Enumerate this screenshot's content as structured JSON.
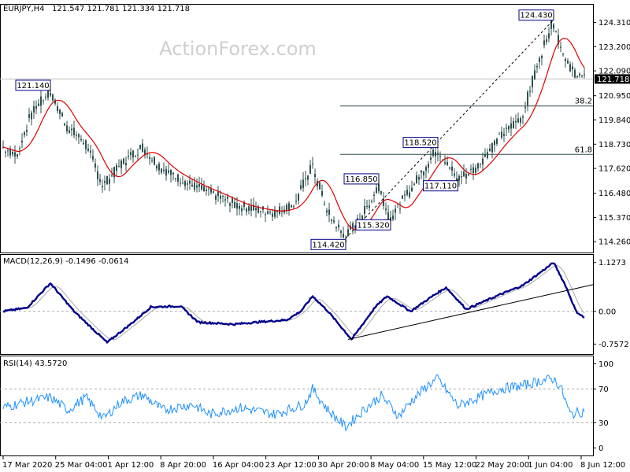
{
  "watermark": "ActionForex.com",
  "main": {
    "symbol": "EURJPY,H4",
    "ohlc": "121.547 121.781 121.334 121.718",
    "price_ticks": [
      "124.310",
      "123.200",
      "122.090",
      "120.950",
      "119.840",
      "118.730",
      "117.620",
      "116.480",
      "115.370",
      "114.260"
    ],
    "current_price": "121.718",
    "fib_levels": [
      {
        "label": "38.2",
        "price": 120.48
      },
      {
        "label": "61.8",
        "price": 118.26
      }
    ],
    "annotations": [
      "124.430",
      "121.140",
      "118.520",
      "117.110",
      "116.850",
      "115.320",
      "114.420"
    ],
    "ma_color": "#dd0000",
    "candle_color": "#2f4f4f"
  },
  "macd": {
    "label": "MACD(12,26,9) -0.1496 -0.0614",
    "ticks": [
      "1.1273",
      "0.00",
      "-0.7572"
    ],
    "macd_color": "#00008b",
    "signal_color": "#a9a9a9"
  },
  "rsi": {
    "label": "RSI(14) 43.5720",
    "ticks": [
      "100",
      "70",
      "30",
      "0"
    ],
    "color": "#1e90ff"
  },
  "x_labels": [
    "17 Mar 2020",
    "25 Mar 04:00",
    "1 Apr 12:00",
    "8 Apr 20:00",
    "16 Apr 04:00",
    "23 Apr 12:00",
    "30 Apr 20:00",
    "8 May 04:00",
    "15 May 12:00",
    "22 May 20:00",
    "1 Jun 04:00",
    "8 Jun 12:00"
  ],
  "chart_data": {
    "type": "line",
    "price_keypoints": [
      [
        0,
        118.6
      ],
      [
        12,
        118.2
      ],
      [
        25,
        120.2
      ],
      [
        40,
        121.14
      ],
      [
        55,
        119.5
      ],
      [
        70,
        118.8
      ],
      [
        85,
        116.8
      ],
      [
        100,
        117.8
      ],
      [
        118,
        118.6
      ],
      [
        135,
        117.6
      ],
      [
        158,
        116.9
      ],
      [
        180,
        116.4
      ],
      [
        200,
        115.9
      ],
      [
        230,
        115.6
      ],
      [
        248,
        116.0
      ],
      [
        262,
        117.8
      ],
      [
        275,
        115.6
      ],
      [
        290,
        114.42
      ],
      [
        310,
        115.9
      ],
      [
        318,
        116.85
      ],
      [
        328,
        115.32
      ],
      [
        345,
        116.6
      ],
      [
        368,
        118.52
      ],
      [
        385,
        117.11
      ],
      [
        400,
        117.6
      ],
      [
        420,
        119.0
      ],
      [
        440,
        120.0
      ],
      [
        452,
        122.2
      ],
      [
        466,
        124.43
      ],
      [
        472,
        123.3
      ],
      [
        480,
        122.2
      ],
      [
        492,
        121.72
      ]
    ],
    "macd_keypoints": [
      [
        0,
        0.0
      ],
      [
        20,
        0.08
      ],
      [
        40,
        0.65
      ],
      [
        60,
        0.0
      ],
      [
        88,
        -0.72
      ],
      [
        110,
        -0.25
      ],
      [
        125,
        0.1
      ],
      [
        150,
        0.12
      ],
      [
        165,
        -0.25
      ],
      [
        195,
        -0.3
      ],
      [
        215,
        -0.25
      ],
      [
        240,
        -0.2
      ],
      [
        252,
        0.0
      ],
      [
        262,
        0.35
      ],
      [
        275,
        0.0
      ],
      [
        295,
        -0.65
      ],
      [
        315,
        0.1
      ],
      [
        325,
        0.35
      ],
      [
        345,
        0.0
      ],
      [
        365,
        0.38
      ],
      [
        375,
        0.55
      ],
      [
        392,
        0.05
      ],
      [
        420,
        0.38
      ],
      [
        440,
        0.6
      ],
      [
        466,
        1.1273
      ],
      [
        476,
        0.6
      ],
      [
        485,
        0.0
      ],
      [
        492,
        -0.1496
      ]
    ],
    "rsi_keypoints": [
      [
        0,
        48
      ],
      [
        20,
        55
      ],
      [
        40,
        60
      ],
      [
        55,
        45
      ],
      [
        70,
        60
      ],
      [
        85,
        35
      ],
      [
        100,
        55
      ],
      [
        118,
        63
      ],
      [
        135,
        45
      ],
      [
        160,
        52
      ],
      [
        175,
        40
      ],
      [
        200,
        48
      ],
      [
        230,
        40
      ],
      [
        255,
        52
      ],
      [
        262,
        70
      ],
      [
        275,
        45
      ],
      [
        290,
        25
      ],
      [
        305,
        45
      ],
      [
        320,
        62
      ],
      [
        335,
        38
      ],
      [
        345,
        55
      ],
      [
        360,
        75
      ],
      [
        368,
        82
      ],
      [
        385,
        50
      ],
      [
        420,
        70
      ],
      [
        440,
        74
      ],
      [
        455,
        80
      ],
      [
        466,
        82
      ],
      [
        472,
        72
      ],
      [
        480,
        40
      ],
      [
        492,
        43.572
      ]
    ],
    "ma_period": 20,
    "trendlines": {
      "price": [
        [
          290,
          114.42
        ],
        [
          466,
          124.43
        ]
      ],
      "macd": [
        [
          292,
          -0.65
        ],
        [
          500,
          0.62
        ]
      ]
    },
    "price_ylim": [
      113.8,
      125.05
    ],
    "macd_ylim": [
      -0.95,
      1.25
    ],
    "rsi_ylim": [
      -8,
      106
    ]
  }
}
